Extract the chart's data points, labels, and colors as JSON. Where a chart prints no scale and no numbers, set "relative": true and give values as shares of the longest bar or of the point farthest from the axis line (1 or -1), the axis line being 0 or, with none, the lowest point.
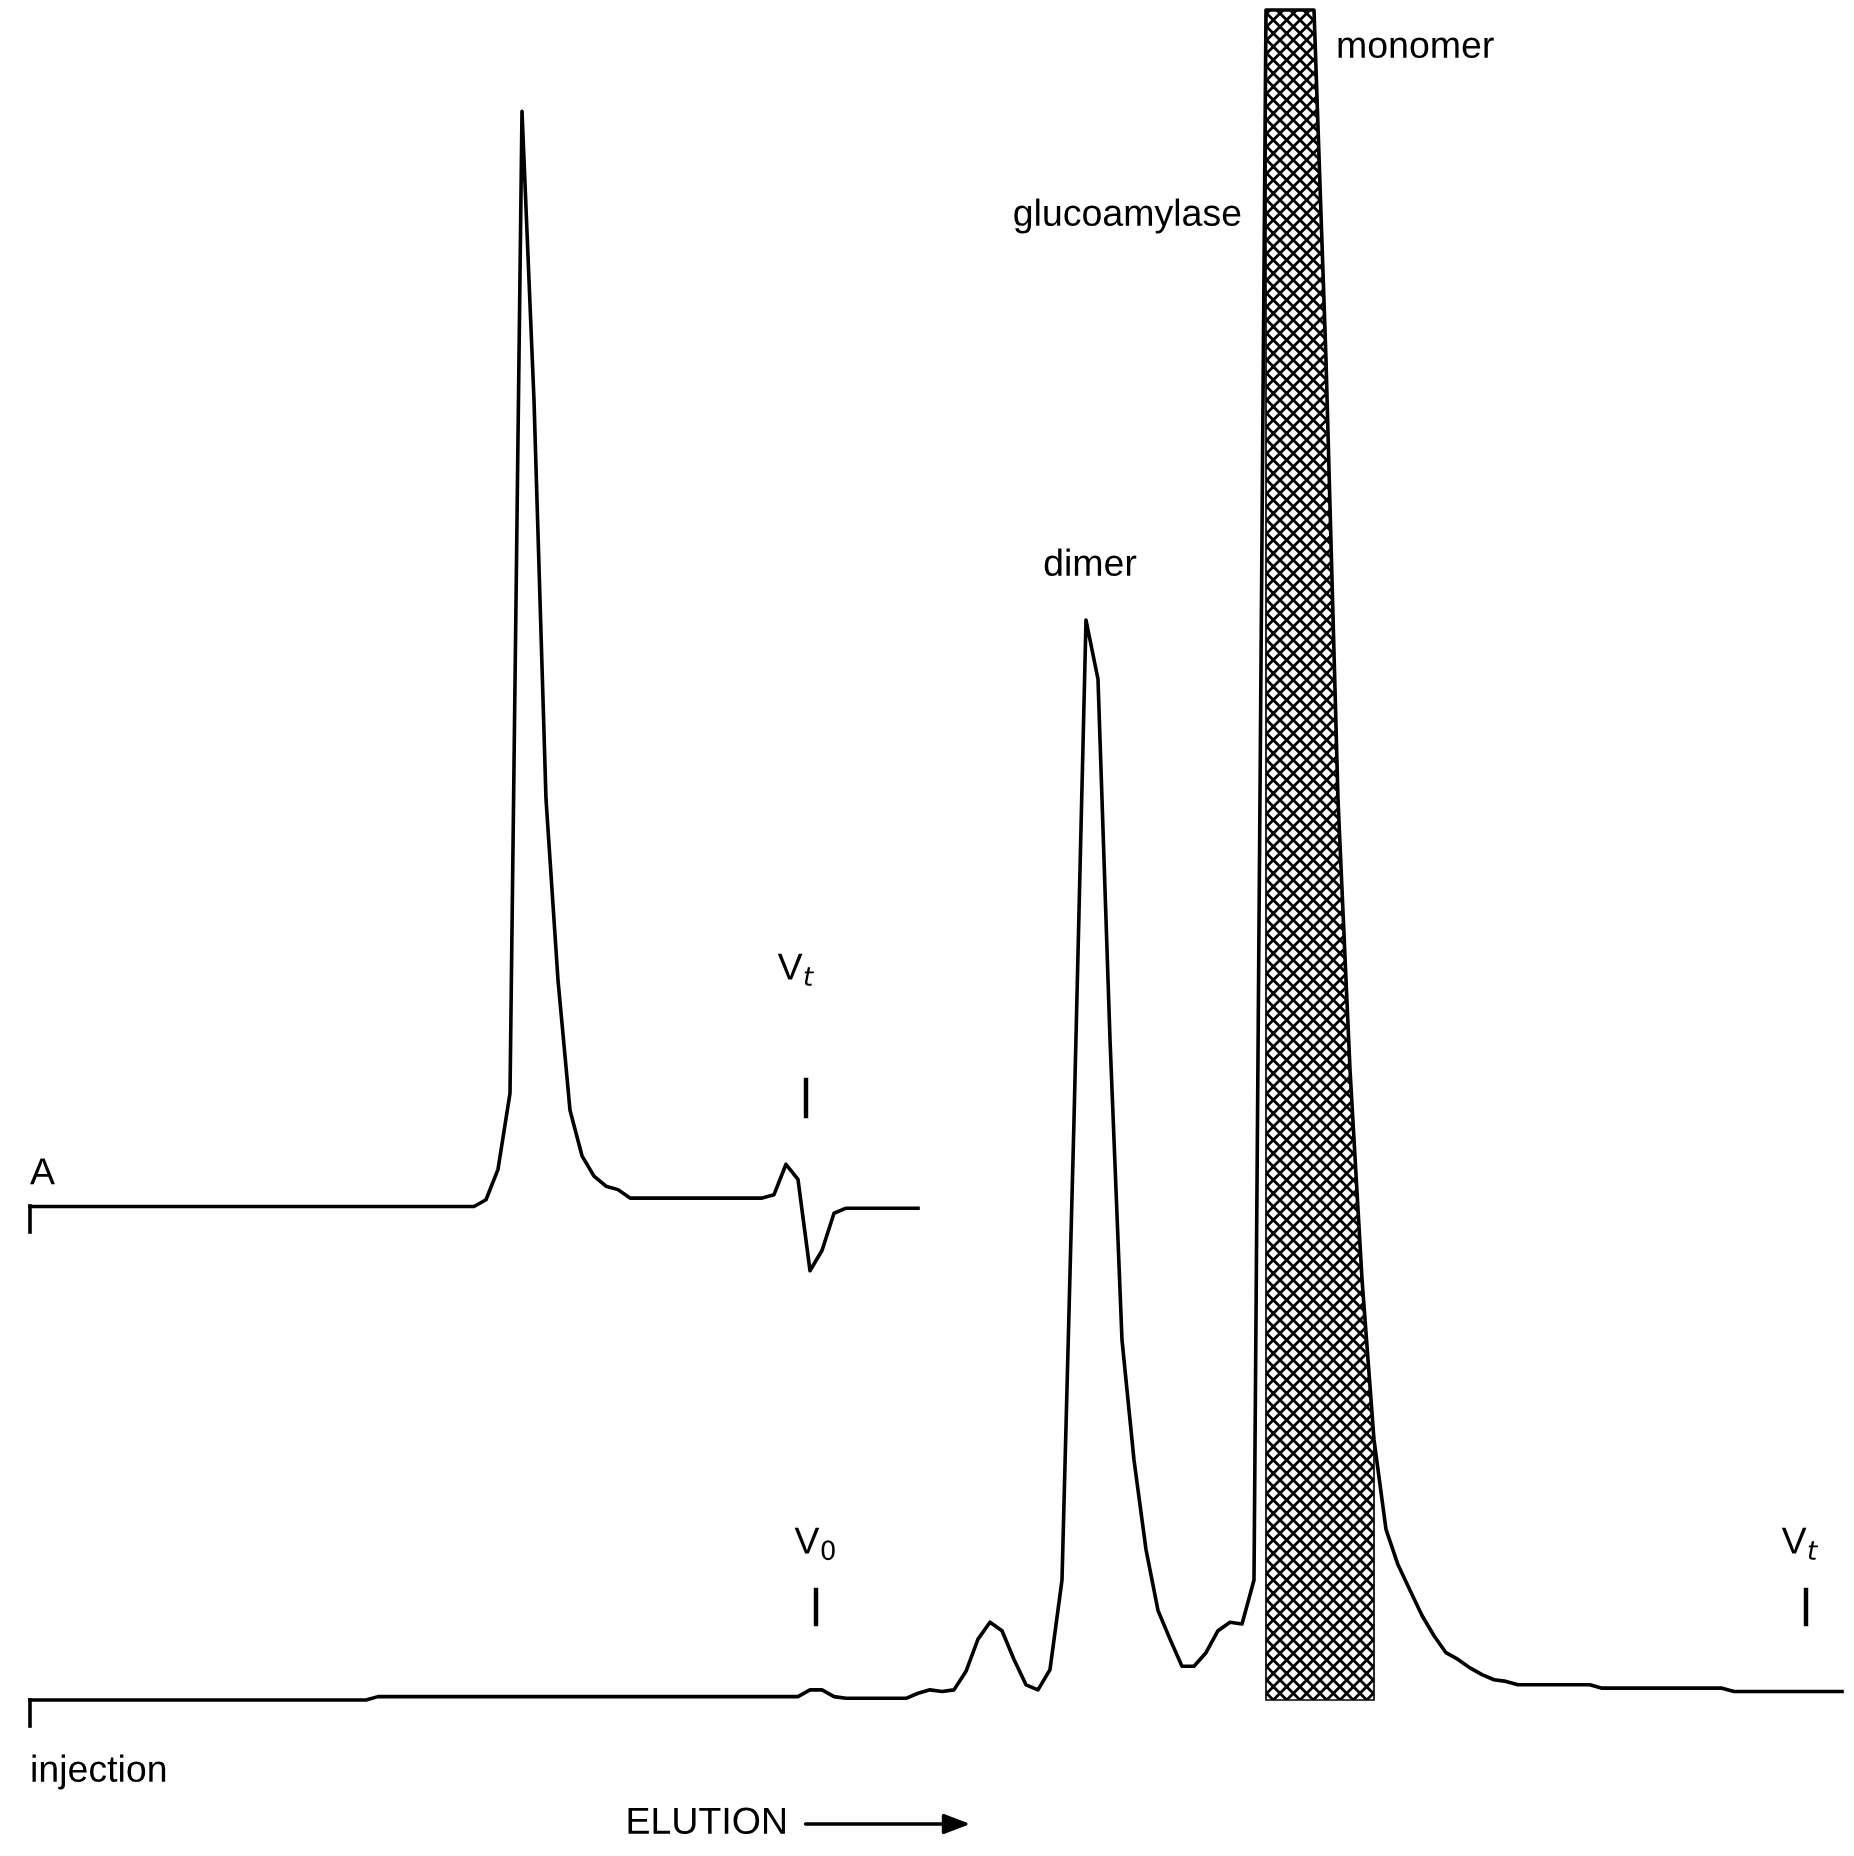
{
  "chart_data": {
    "type": "line",
    "relative": true,
    "categories": [
      null,
      null,
      null,
      null,
      null,
      null,
      null,
      null,
      null,
      null,
      null,
      null,
      null,
      null,
      null,
      null,
      null,
      null,
      null,
      null,
      null,
      null,
      null,
      null,
      null,
      null,
      null,
      null,
      null,
      null,
      null,
      null,
      null,
      null,
      null,
      null,
      null,
      null,
      null,
      null,
      null,
      null,
      null,
      null,
      null,
      null,
      null,
      null,
      null,
      null,
      null,
      null,
      null,
      null,
      null,
      null,
      null,
      null,
      null,
      null,
      null,
      null,
      null,
      null,
      null,
      null,
      null,
      null,
      null,
      null,
      null,
      null,
      null,
      null,
      null,
      null,
      null,
      null,
      null,
      null,
      null,
      null,
      null,
      null,
      null,
      null,
      null,
      null,
      null,
      null,
      null,
      null,
      null,
      null,
      null,
      null,
      null,
      null,
      null,
      null,
      null,
      null,
      null,
      null,
      null,
      null,
      null,
      null,
      null,
      null,
      null,
      null,
      null,
      null,
      null,
      null,
      null,
      null,
      null,
      null,
      null,
      null,
      null,
      null,
      null,
      null,
      null,
      null,
      null,
      null,
      null,
      null,
      null,
      null,
      null,
      null,
      null,
      null,
      null,
      null,
      null,
      null,
      null,
      null,
      null,
      null,
      null,
      null,
      null,
      null,
      null,
      null
    ],
    "series": [
      {
        "color": "#000000",
        "values": [
          0.292,
          0.292,
          0.292,
          0.292,
          0.292,
          0.292,
          0.292,
          0.292,
          0.292,
          0.292,
          0.292,
          0.292,
          0.292,
          0.292,
          0.292,
          0.292,
          0.292,
          0.292,
          0.292,
          0.292,
          0.292,
          0.292,
          0.292,
          0.292,
          0.292,
          0.292,
          0.292,
          0.292,
          0.292,
          0.292,
          0.292,
          0.292,
          0.292,
          0.292,
          0.292,
          0.292,
          0.292,
          0.292,
          0.296,
          0.314,
          0.359,
          0.94,
          0.769,
          0.533,
          0.426,
          0.349,
          0.322,
          0.31,
          0.304,
          0.302,
          0.297,
          0.297,
          0.297,
          0.297,
          0.297,
          0.297,
          0.297,
          0.297,
          0.297,
          0.297,
          0.297,
          0.297,
          0.299,
          0.317,
          0.308,
          0.254,
          0.266,
          0.288,
          0.291,
          0.291,
          0.291,
          0.291,
          0.291,
          0.291,
          0.291,
          null,
          null,
          null,
          null,
          null,
          null,
          null,
          null,
          null,
          null,
          null,
          null,
          null,
          null,
          null,
          null,
          null,
          null,
          null,
          null,
          null,
          null,
          null,
          null,
          null,
          null,
          null,
          null,
          null,
          null,
          null,
          null,
          null,
          null,
          null,
          null,
          null,
          null,
          null,
          null,
          null,
          null,
          null,
          null,
          null,
          null,
          null,
          null,
          null,
          null,
          null,
          null,
          null,
          null,
          null,
          null,
          null,
          null,
          null,
          null,
          null,
          null,
          null,
          null,
          null,
          null,
          null,
          null,
          null,
          null,
          null,
          null,
          null,
          null,
          null,
          null,
          null
        ]
      },
      {
        "color": "#000000",
        "values": [
          0,
          0,
          0,
          0,
          0,
          0,
          0,
          0,
          0,
          0,
          0,
          0,
          0,
          0,
          0,
          0,
          0,
          0,
          0,
          0,
          0,
          0,
          0,
          0,
          0,
          0,
          0,
          0,
          0,
          0.002,
          0.002,
          0.002,
          0.002,
          0.002,
          0.002,
          0.002,
          0.002,
          0.002,
          0.002,
          0.002,
          0.002,
          0.002,
          0.002,
          0.002,
          0.002,
          0.002,
          0.002,
          0.002,
          0.002,
          0.002,
          0.002,
          0.002,
          0.002,
          0.002,
          0.002,
          0.002,
          0.002,
          0.002,
          0.002,
          0.002,
          0.002,
          0.002,
          0.002,
          0.002,
          0.002,
          0.006,
          0.006,
          0.002,
          0.001,
          0.001,
          0.001,
          0.001,
          0.001,
          0.001,
          0.004,
          0.006,
          0.005,
          0.006,
          0.017,
          0.036,
          0.046,
          0.041,
          0.024,
          0.009,
          0.006,
          0.018,
          0.071,
          0.343,
          0.639,
          0.604,
          0.391,
          0.213,
          0.142,
          0.089,
          0.053,
          0.036,
          0.02,
          0.02,
          0.028,
          0.041,
          0.046,
          0.045,
          0.071,
          1,
          1,
          1,
          1,
          1,
          0.793,
          0.533,
          0.373,
          0.249,
          0.154,
          0.101,
          0.08,
          0.065,
          0.05,
          0.038,
          0.028,
          0.024,
          0.019,
          0.015,
          0.012,
          0.011,
          0.009,
          0.009,
          0.009,
          0.009,
          0.009,
          0.009,
          0.009,
          0.007,
          0.007,
          0.007,
          0.007,
          0.007,
          0.007,
          0.007,
          0.007,
          0.007,
          0.007,
          0.007,
          0.005,
          0.005,
          0.005,
          0.005,
          0.005,
          0.005,
          0.005,
          0.005,
          0.005,
          0.005
        ]
      },
      {
        "type": "area",
        "color": "#000000",
        "values": [
          null,
          null,
          null,
          null,
          null,
          null,
          null,
          null,
          null,
          null,
          null,
          null,
          null,
          null,
          null,
          null,
          null,
          null,
          null,
          null,
          null,
          null,
          null,
          null,
          null,
          null,
          null,
          null,
          null,
          null,
          null,
          null,
          null,
          null,
          null,
          null,
          null,
          null,
          null,
          null,
          null,
          null,
          null,
          null,
          null,
          null,
          null,
          null,
          null,
          null,
          null,
          null,
          null,
          null,
          null,
          null,
          null,
          null,
          null,
          null,
          null,
          null,
          null,
          null,
          null,
          null,
          null,
          null,
          null,
          null,
          null,
          null,
          null,
          null,
          null,
          null,
          null,
          null,
          null,
          null,
          null,
          null,
          null,
          null,
          null,
          null,
          null,
          null,
          null,
          null,
          null,
          null,
          null,
          null,
          null,
          null,
          null,
          null,
          null,
          null,
          null,
          null,
          null,
          1,
          1,
          1,
          1,
          1,
          0.793,
          0.533,
          0.373,
          0.249,
          0.154,
          null,
          null,
          null,
          null,
          null,
          null,
          null,
          null,
          null,
          null,
          null,
          null,
          null,
          null,
          null,
          null,
          null,
          null,
          null,
          null,
          null,
          null,
          null,
          null,
          null,
          null,
          null,
          null,
          null,
          null,
          null,
          null,
          null,
          null,
          null,
          null,
          null,
          null,
          null
        ]
      }
    ],
    "annotations": [
      "A",
      "V$_{t}$",
      "glucoamylase",
      "dimer",
      "monomer",
      "V$_{0}$",
      "V$_{t}$",
      "injection",
      "ELUTION"
    ]
  }
}
